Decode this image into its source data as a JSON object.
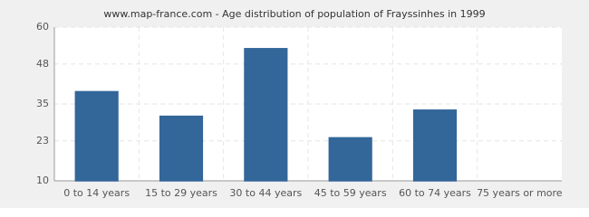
{
  "chart_data": {
    "type": "bar",
    "title": "www.map-france.com - Age distribution of population of Frayssinhes in 1999",
    "categories": [
      "0 to 14 years",
      "15 to 29 years",
      "30 to 44 years",
      "45 to 59 years",
      "60 to 74 years",
      "75 years or more"
    ],
    "values": [
      39,
      31,
      53,
      24,
      33,
      10
    ],
    "color": "#336699",
    "ylim": [
      10,
      60
    ],
    "yticks": [
      10,
      23,
      35,
      48,
      60
    ],
    "grid": true
  }
}
